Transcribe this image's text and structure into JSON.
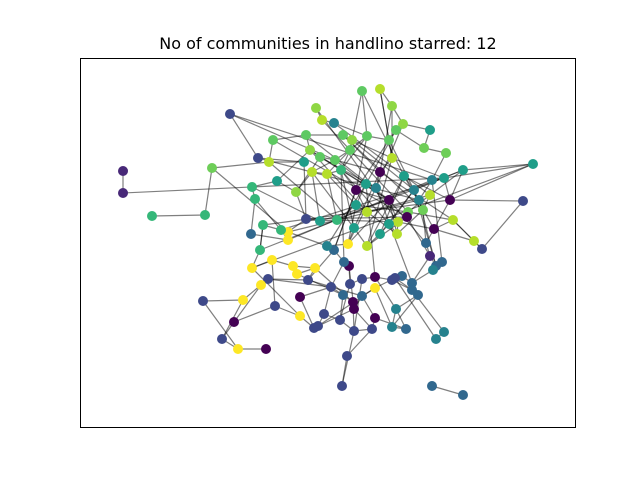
{
  "title": "No of communities in handlino starred: 12",
  "palette": [
    "#440154",
    "#482878",
    "#3e4989",
    "#31688e",
    "#26828e",
    "#1f9e89",
    "#35b779",
    "#6ece58",
    "#b5de2b",
    "#fde725",
    "#5ec962",
    "#8fd744"
  ],
  "nodes": [
    [
      123,
      171,
      1
    ],
    [
      123,
      193,
      1
    ],
    [
      230,
      114,
      2
    ],
    [
      258,
      158,
      2
    ],
    [
      273,
      140,
      10
    ],
    [
      306,
      135,
      10
    ],
    [
      316,
      108,
      11
    ],
    [
      322,
      120,
      8
    ],
    [
      334,
      123,
      4
    ],
    [
      343,
      135,
      10
    ],
    [
      352,
      140,
      11
    ],
    [
      362,
      91,
      10
    ],
    [
      380,
      89,
      8
    ],
    [
      392,
      106,
      11
    ],
    [
      403,
      124,
      11
    ],
    [
      396,
      130,
      10
    ],
    [
      389,
      140,
      10
    ],
    [
      367,
      136,
      10
    ],
    [
      350,
      150,
      10
    ],
    [
      335,
      160,
      10
    ],
    [
      320,
      157,
      10
    ],
    [
      310,
      150,
      11
    ],
    [
      304,
      162,
      5
    ],
    [
      269,
      162,
      8
    ],
    [
      252,
      187,
      6
    ],
    [
      277,
      181,
      5
    ],
    [
      296,
      192,
      11
    ],
    [
      312,
      172,
      8
    ],
    [
      327,
      174,
      8
    ],
    [
      341,
      170,
      6
    ],
    [
      356,
      190,
      0
    ],
    [
      366,
      184,
      5
    ],
    [
      376,
      188,
      4
    ],
    [
      380,
      172,
      0
    ],
    [
      392,
      158,
      8
    ],
    [
      404,
      176,
      5
    ],
    [
      414,
      190,
      4
    ],
    [
      423,
      210,
      7
    ],
    [
      430,
      195,
      8
    ],
    [
      408,
      212,
      7
    ],
    [
      398,
      222,
      8
    ],
    [
      389,
      200,
      0
    ],
    [
      407,
      217,
      0
    ],
    [
      419,
      200,
      4
    ],
    [
      432,
      180,
      4
    ],
    [
      444,
      178,
      5
    ],
    [
      450,
      200,
      0
    ],
    [
      463,
      170,
      5
    ],
    [
      533,
      164,
      5
    ],
    [
      523,
      201,
      2
    ],
    [
      482,
      249,
      2
    ],
    [
      474,
      241,
      8
    ],
    [
      453,
      220,
      8
    ],
    [
      434,
      229,
      0
    ],
    [
      426,
      243,
      3
    ],
    [
      430,
      256,
      1
    ],
    [
      436,
      266,
      3
    ],
    [
      442,
      262,
      3
    ],
    [
      433,
      270,
      4
    ],
    [
      412,
      283,
      3
    ],
    [
      402,
      276,
      3
    ],
    [
      392,
      280,
      2
    ],
    [
      375,
      277,
      0
    ],
    [
      362,
      279,
      2
    ],
    [
      350,
      284,
      2
    ],
    [
      349,
      266,
      0
    ],
    [
      344,
      262,
      3
    ],
    [
      334,
      250,
      3
    ],
    [
      327,
      246,
      4
    ],
    [
      348,
      244,
      9
    ],
    [
      354,
      228,
      5
    ],
    [
      367,
      246,
      8
    ],
    [
      380,
      234,
      5
    ],
    [
      389,
      224,
      5
    ],
    [
      397,
      234,
      8
    ],
    [
      367,
      212,
      8
    ],
    [
      356,
      205,
      5
    ],
    [
      337,
      220,
      6
    ],
    [
      320,
      221,
      5
    ],
    [
      306,
      219,
      2
    ],
    [
      288,
      232,
      9
    ],
    [
      288,
      240,
      9
    ],
    [
      281,
      230,
      6
    ],
    [
      263,
      225,
      6
    ],
    [
      260,
      250,
      6
    ],
    [
      252,
      268,
      9
    ],
    [
      272,
      260,
      9
    ],
    [
      293,
      266,
      9
    ],
    [
      297,
      274,
      9
    ],
    [
      315,
      268,
      9
    ],
    [
      308,
      280,
      2
    ],
    [
      268,
      279,
      2
    ],
    [
      261,
      285,
      9
    ],
    [
      243,
      300,
      9
    ],
    [
      203,
      301,
      2
    ],
    [
      300,
      297,
      0
    ],
    [
      331,
      287,
      2
    ],
    [
      343,
      295,
      3
    ],
    [
      353,
      302,
      0
    ],
    [
      354,
      309,
      0
    ],
    [
      362,
      296,
      3
    ],
    [
      375,
      288,
      9
    ],
    [
      395,
      278,
      2
    ],
    [
      412,
      290,
      3
    ],
    [
      418,
      295,
      3
    ],
    [
      396,
      309,
      4
    ],
    [
      392,
      327,
      4
    ],
    [
      406,
      329,
      3
    ],
    [
      375,
      318,
      0
    ],
    [
      372,
      329,
      2
    ],
    [
      354,
      331,
      2
    ],
    [
      340,
      320,
      2
    ],
    [
      324,
      314,
      2
    ],
    [
      318,
      326,
      2
    ],
    [
      314,
      328,
      2
    ],
    [
      300,
      316,
      9
    ],
    [
      275,
      306,
      2
    ],
    [
      234,
      322,
      0
    ],
    [
      222,
      339,
      2
    ],
    [
      238,
      349,
      9
    ],
    [
      266,
      349,
      0
    ],
    [
      436,
      339,
      4
    ],
    [
      444,
      332,
      4
    ],
    [
      347,
      356,
      2
    ],
    [
      342,
      386,
      2
    ],
    [
      432,
      386,
      3
    ],
    [
      463,
      395,
      3
    ],
    [
      152,
      216,
      6
    ],
    [
      205,
      215,
      6
    ],
    [
      212,
      168,
      7
    ],
    [
      251,
      234,
      3
    ],
    [
      255,
      199,
      6
    ],
    [
      430,
      130,
      5
    ],
    [
      424,
      148,
      7
    ],
    [
      446,
      153,
      7
    ]
  ],
  "edges": [
    [
      0,
      1
    ],
    [
      2,
      3
    ],
    [
      3,
      22
    ],
    [
      4,
      5
    ],
    [
      5,
      9
    ],
    [
      6,
      7
    ],
    [
      7,
      8
    ],
    [
      8,
      17
    ],
    [
      9,
      10
    ],
    [
      10,
      18
    ],
    [
      11,
      17
    ],
    [
      12,
      13
    ],
    [
      13,
      14
    ],
    [
      14,
      15
    ],
    [
      15,
      16
    ],
    [
      16,
      17
    ],
    [
      17,
      18
    ],
    [
      18,
      19
    ],
    [
      19,
      20
    ],
    [
      20,
      21
    ],
    [
      21,
      5
    ],
    [
      22,
      23
    ],
    [
      23,
      4
    ],
    [
      24,
      25
    ],
    [
      25,
      26
    ],
    [
      26,
      27
    ],
    [
      27,
      28
    ],
    [
      28,
      29
    ],
    [
      29,
      30
    ],
    [
      30,
      31
    ],
    [
      31,
      32
    ],
    [
      32,
      33
    ],
    [
      33,
      34
    ],
    [
      34,
      16
    ],
    [
      35,
      36
    ],
    [
      36,
      37
    ],
    [
      37,
      38
    ],
    [
      38,
      39
    ],
    [
      39,
      40
    ],
    [
      40,
      41
    ],
    [
      41,
      30
    ],
    [
      42,
      39
    ],
    [
      43,
      44
    ],
    [
      44,
      45
    ],
    [
      45,
      46
    ],
    [
      46,
      47
    ],
    [
      47,
      48
    ],
    [
      49,
      50
    ],
    [
      50,
      51
    ],
    [
      51,
      52
    ],
    [
      52,
      53
    ],
    [
      53,
      54
    ],
    [
      54,
      55
    ],
    [
      55,
      56
    ],
    [
      56,
      57
    ],
    [
      58,
      59
    ],
    [
      59,
      60
    ],
    [
      60,
      61
    ],
    [
      61,
      62
    ],
    [
      62,
      63
    ],
    [
      63,
      64
    ],
    [
      64,
      65
    ],
    [
      65,
      66
    ],
    [
      66,
      67
    ],
    [
      67,
      68
    ],
    [
      68,
      69
    ],
    [
      69,
      70
    ],
    [
      70,
      71
    ],
    [
      71,
      72
    ],
    [
      72,
      73
    ],
    [
      73,
      74
    ],
    [
      74,
      75
    ],
    [
      75,
      76
    ],
    [
      76,
      77
    ],
    [
      77,
      78
    ],
    [
      78,
      79
    ],
    [
      79,
      80
    ],
    [
      80,
      81
    ],
    [
      81,
      82
    ],
    [
      82,
      83
    ],
    [
      83,
      84
    ],
    [
      84,
      85
    ],
    [
      85,
      86
    ],
    [
      86,
      87
    ],
    [
      87,
      88
    ],
    [
      88,
      89
    ],
    [
      89,
      90
    ],
    [
      90,
      91
    ],
    [
      91,
      92
    ],
    [
      92,
      93
    ],
    [
      93,
      94
    ],
    [
      95,
      96
    ],
    [
      96,
      97
    ],
    [
      97,
      98
    ],
    [
      98,
      99
    ],
    [
      99,
      100
    ],
    [
      100,
      101
    ],
    [
      101,
      102
    ],
    [
      102,
      103
    ],
    [
      103,
      104
    ],
    [
      104,
      105
    ],
    [
      105,
      106
    ],
    [
      106,
      107
    ],
    [
      108,
      109
    ],
    [
      109,
      110
    ],
    [
      110,
      111
    ],
    [
      111,
      112
    ],
    [
      112,
      113
    ],
    [
      113,
      114
    ],
    [
      114,
      115
    ],
    [
      115,
      116
    ],
    [
      116,
      117
    ],
    [
      117,
      118
    ],
    [
      118,
      119
    ],
    [
      119,
      120
    ],
    [
      121,
      122
    ],
    [
      123,
      124
    ],
    [
      125,
      126
    ],
    [
      127,
      128
    ],
    [
      128,
      129
    ],
    [
      129,
      23
    ],
    [
      130,
      131
    ],
    [
      131,
      24
    ],
    [
      132,
      133
    ],
    [
      133,
      134
    ],
    [
      134,
      44
    ],
    [
      2,
      19
    ],
    [
      19,
      33
    ],
    [
      20,
      41
    ],
    [
      21,
      75
    ],
    [
      27,
      70
    ],
    [
      28,
      76
    ],
    [
      29,
      73
    ],
    [
      30,
      67
    ],
    [
      31,
      62
    ],
    [
      32,
      59
    ],
    [
      33,
      52
    ],
    [
      34,
      45
    ],
    [
      35,
      53
    ],
    [
      36,
      56
    ],
    [
      37,
      54
    ],
    [
      38,
      47
    ],
    [
      40,
      74
    ],
    [
      41,
      69
    ],
    [
      42,
      71
    ],
    [
      43,
      37
    ],
    [
      46,
      53
    ],
    [
      48,
      45
    ],
    [
      55,
      59
    ],
    [
      57,
      58
    ],
    [
      60,
      102
    ],
    [
      61,
      103
    ],
    [
      62,
      105
    ],
    [
      63,
      110
    ],
    [
      64,
      111
    ],
    [
      65,
      99
    ],
    [
      66,
      96
    ],
    [
      67,
      90
    ],
    [
      68,
      80
    ],
    [
      69,
      76
    ],
    [
      70,
      29
    ],
    [
      71,
      35
    ],
    [
      72,
      36
    ],
    [
      73,
      40
    ],
    [
      74,
      41
    ],
    [
      75,
      30
    ],
    [
      76,
      31
    ],
    [
      77,
      28
    ],
    [
      78,
      27
    ],
    [
      79,
      26
    ],
    [
      80,
      129
    ],
    [
      81,
      130
    ],
    [
      82,
      131
    ],
    [
      83,
      84
    ],
    [
      85,
      115
    ],
    [
      86,
      116
    ],
    [
      87,
      89
    ],
    [
      88,
      97
    ],
    [
      89,
      98
    ],
    [
      90,
      100
    ],
    [
      91,
      96
    ],
    [
      92,
      117
    ],
    [
      93,
      118
    ],
    [
      94,
      119
    ],
    [
      95,
      114
    ],
    [
      96,
      112
    ],
    [
      97,
      111
    ],
    [
      98,
      110
    ],
    [
      99,
      109
    ],
    [
      100,
      108
    ],
    [
      101,
      106
    ],
    [
      102,
      121
    ],
    [
      103,
      122
    ],
    [
      104,
      106
    ],
    [
      105,
      107
    ],
    [
      107,
      108
    ],
    [
      109,
      123
    ],
    [
      110,
      124
    ],
    [
      113,
      101
    ],
    [
      114,
      99
    ],
    [
      9,
      33
    ],
    [
      10,
      34
    ],
    [
      11,
      18
    ],
    [
      12,
      16
    ],
    [
      13,
      34
    ],
    [
      14,
      132
    ],
    [
      15,
      133
    ],
    [
      16,
      36
    ],
    [
      17,
      30
    ],
    [
      18,
      29
    ],
    [
      19,
      31
    ],
    [
      20,
      32
    ],
    [
      21,
      41
    ],
    [
      22,
      79
    ],
    [
      23,
      77
    ],
    [
      24,
      78
    ],
    [
      25,
      21
    ],
    [
      26,
      20
    ],
    [
      27,
      19
    ],
    [
      28,
      18
    ],
    [
      29,
      17
    ],
    [
      30,
      16
    ],
    [
      31,
      15
    ],
    [
      32,
      14
    ],
    [
      33,
      13
    ],
    [
      34,
      12
    ],
    [
      35,
      11
    ],
    [
      36,
      10
    ],
    [
      37,
      9
    ],
    [
      38,
      8
    ],
    [
      39,
      7
    ],
    [
      40,
      6
    ],
    [
      41,
      5
    ],
    [
      42,
      4
    ],
    [
      43,
      3
    ],
    [
      44,
      2
    ],
    [
      45,
      1
    ],
    [
      46,
      35
    ],
    [
      47,
      36
    ],
    [
      48,
      46
    ],
    [
      49,
      46
    ],
    [
      50,
      52
    ],
    [
      51,
      53
    ],
    [
      52,
      39
    ],
    [
      53,
      40
    ],
    [
      54,
      41
    ],
    [
      55,
      42
    ],
    [
      56,
      43
    ],
    [
      57,
      44
    ],
    [
      66,
      29
    ],
    [
      67,
      30
    ],
    [
      68,
      31
    ],
    [
      69,
      32
    ],
    [
      70,
      33
    ],
    [
      71,
      34
    ],
    [
      72,
      35
    ],
    [
      73,
      36
    ],
    [
      74,
      37
    ],
    [
      75,
      38
    ],
    [
      76,
      39
    ],
    [
      77,
      40
    ],
    [
      78,
      41
    ],
    [
      79,
      42
    ],
    [
      80,
      43
    ],
    [
      81,
      44
    ],
    [
      82,
      45
    ],
    [
      83,
      46
    ],
    [
      84,
      47
    ],
    [
      85,
      48
    ]
  ]
}
